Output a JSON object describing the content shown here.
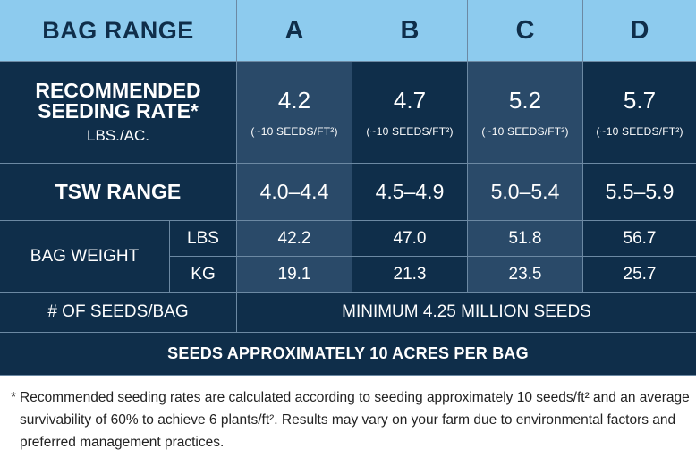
{
  "header": {
    "title": "BAG RANGE",
    "columns": [
      "A",
      "B",
      "C",
      "D"
    ]
  },
  "rate_row": {
    "label_line1": "RECOMMENDED",
    "label_line2": "SEEDING RATE*",
    "label_unit": "LBS./AC.",
    "values": [
      "4.2",
      "4.7",
      "5.2",
      "5.7"
    ],
    "note": "(~10 SEEDS/FT²)"
  },
  "tsw_row": {
    "label": "TSW RANGE",
    "values": [
      "4.0–4.4",
      "4.5–4.9",
      "5.0–5.4",
      "5.5–5.9"
    ]
  },
  "bag_weight": {
    "label": "BAG WEIGHT",
    "lbs": {
      "unit": "LBS",
      "values": [
        "42.2",
        "47.0",
        "51.8",
        "56.7"
      ]
    },
    "kg": {
      "unit": "KG",
      "values": [
        "19.1",
        "21.3",
        "23.5",
        "25.7"
      ]
    }
  },
  "seeds_row": {
    "label": "# OF SEEDS/BAG",
    "value": "MINIMUM 4.25 MILLION SEEDS"
  },
  "footer_row": {
    "text": "SEEDS APPROXIMATELY 10 ACRES PER BAG"
  },
  "footnote": {
    "marker": "*",
    "text": "Recommended seeding rates are calculated according to seeding approximately 10 seeds/ft² and an average survivability of 60% to achieve 6 plants/ft². Results may vary on your farm due to environmental factors and preferred management practices."
  },
  "colors": {
    "header_bg": "#8dcbee",
    "dark_bg": "#0f2e4a",
    "mid_bg": "#2a4a69",
    "header_text": "#0f2e4a"
  }
}
